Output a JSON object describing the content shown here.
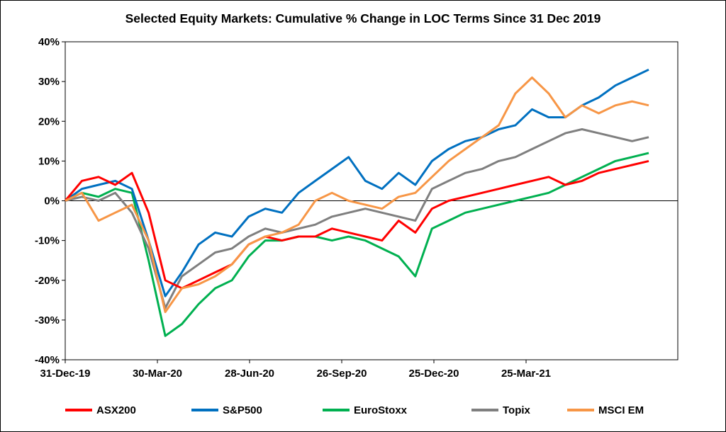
{
  "chart_data": {
    "type": "line",
    "title": "Selected Equity Markets: Cumulative % Change in LOC Terms Since 31 Dec 2019",
    "xlabel": "",
    "ylabel": "",
    "ylim": [
      -40,
      40
    ],
    "yticks": [
      "-40%",
      "-30%",
      "-20%",
      "-10%",
      "0%",
      "10%",
      "20%",
      "30%",
      "40%"
    ],
    "xticks": [
      "31-Dec-19",
      "30-Mar-20",
      "28-Jun-20",
      "26-Sep-20",
      "25-Dec-20",
      "25-Mar-21"
    ],
    "x": [
      "31-Dec-19",
      "15-Jan-20",
      "30-Jan-20",
      "14-Feb-20",
      "29-Feb-20",
      "10-Mar-20",
      "20-Mar-20",
      "30-Mar-20",
      "14-Apr-20",
      "29-Apr-20",
      "14-May-20",
      "29-May-20",
      "13-Jun-20",
      "28-Jun-20",
      "13-Jul-20",
      "28-Jul-20",
      "12-Aug-20",
      "27-Aug-20",
      "11-Sep-20",
      "26-Sep-20",
      "11-Oct-20",
      "26-Oct-20",
      "10-Nov-20",
      "25-Nov-20",
      "10-Dec-20",
      "25-Dec-20",
      "9-Jan-21",
      "24-Jan-21",
      "8-Feb-21",
      "23-Feb-21",
      "10-Mar-21",
      "25-Mar-21",
      "9-Apr-21",
      "24-Apr-21",
      "9-May-21",
      "24-May-21"
    ],
    "legend_position": "bottom",
    "grid": false,
    "series": [
      {
        "name": "ASX200",
        "color": "#ff0000",
        "values": [
          0,
          5,
          6,
          4,
          7,
          -3,
          -20,
          -22,
          -20,
          -18,
          -16,
          -11,
          -9,
          -10,
          -9,
          -9,
          -7,
          -8,
          -9,
          -10,
          -5,
          -8,
          -2,
          0,
          1,
          2,
          3,
          4,
          5,
          6,
          4,
          5,
          7,
          8,
          9,
          10
        ]
      },
      {
        "name": "S&P500",
        "color": "#0070c0",
        "values": [
          0,
          3,
          4,
          5,
          3,
          -10,
          -24,
          -18,
          -11,
          -8,
          -9,
          -4,
          -2,
          -3,
          2,
          5,
          8,
          11,
          5,
          3,
          7,
          4,
          10,
          13,
          15,
          16,
          18,
          19,
          23,
          21,
          21,
          24,
          26,
          29,
          31,
          33
        ]
      },
      {
        "name": "EuroStoxx",
        "color": "#00b050",
        "values": [
          0,
          2,
          1,
          3,
          2,
          -15,
          -34,
          -31,
          -26,
          -22,
          -20,
          -14,
          -10,
          -10,
          -9,
          -9,
          -10,
          -9,
          -10,
          -12,
          -14,
          -19,
          -7,
          -5,
          -3,
          -2,
          -1,
          0,
          1,
          2,
          4,
          6,
          8,
          10,
          11,
          12
        ]
      },
      {
        "name": "Topix",
        "color": "#7f7f7f",
        "values": [
          0,
          1,
          0,
          2,
          -3,
          -12,
          -27,
          -19,
          -16,
          -13,
          -12,
          -9,
          -7,
          -8,
          -7,
          -6,
          -4,
          -3,
          -2,
          -3,
          -4,
          -5,
          3,
          5,
          7,
          8,
          10,
          11,
          13,
          15,
          17,
          18,
          17,
          16,
          15,
          16
        ]
      },
      {
        "name": "MSCI EM",
        "color": "#f79646",
        "values": [
          0,
          2,
          -5,
          -3,
          -1,
          -10,
          -28,
          -22,
          -21,
          -19,
          -16,
          -11,
          -9,
          -8,
          -6,
          0,
          2,
          0,
          -1,
          -2,
          1,
          2,
          6,
          10,
          13,
          16,
          19,
          27,
          31,
          27,
          21,
          24,
          22,
          24,
          25,
          24
        ]
      }
    ]
  }
}
